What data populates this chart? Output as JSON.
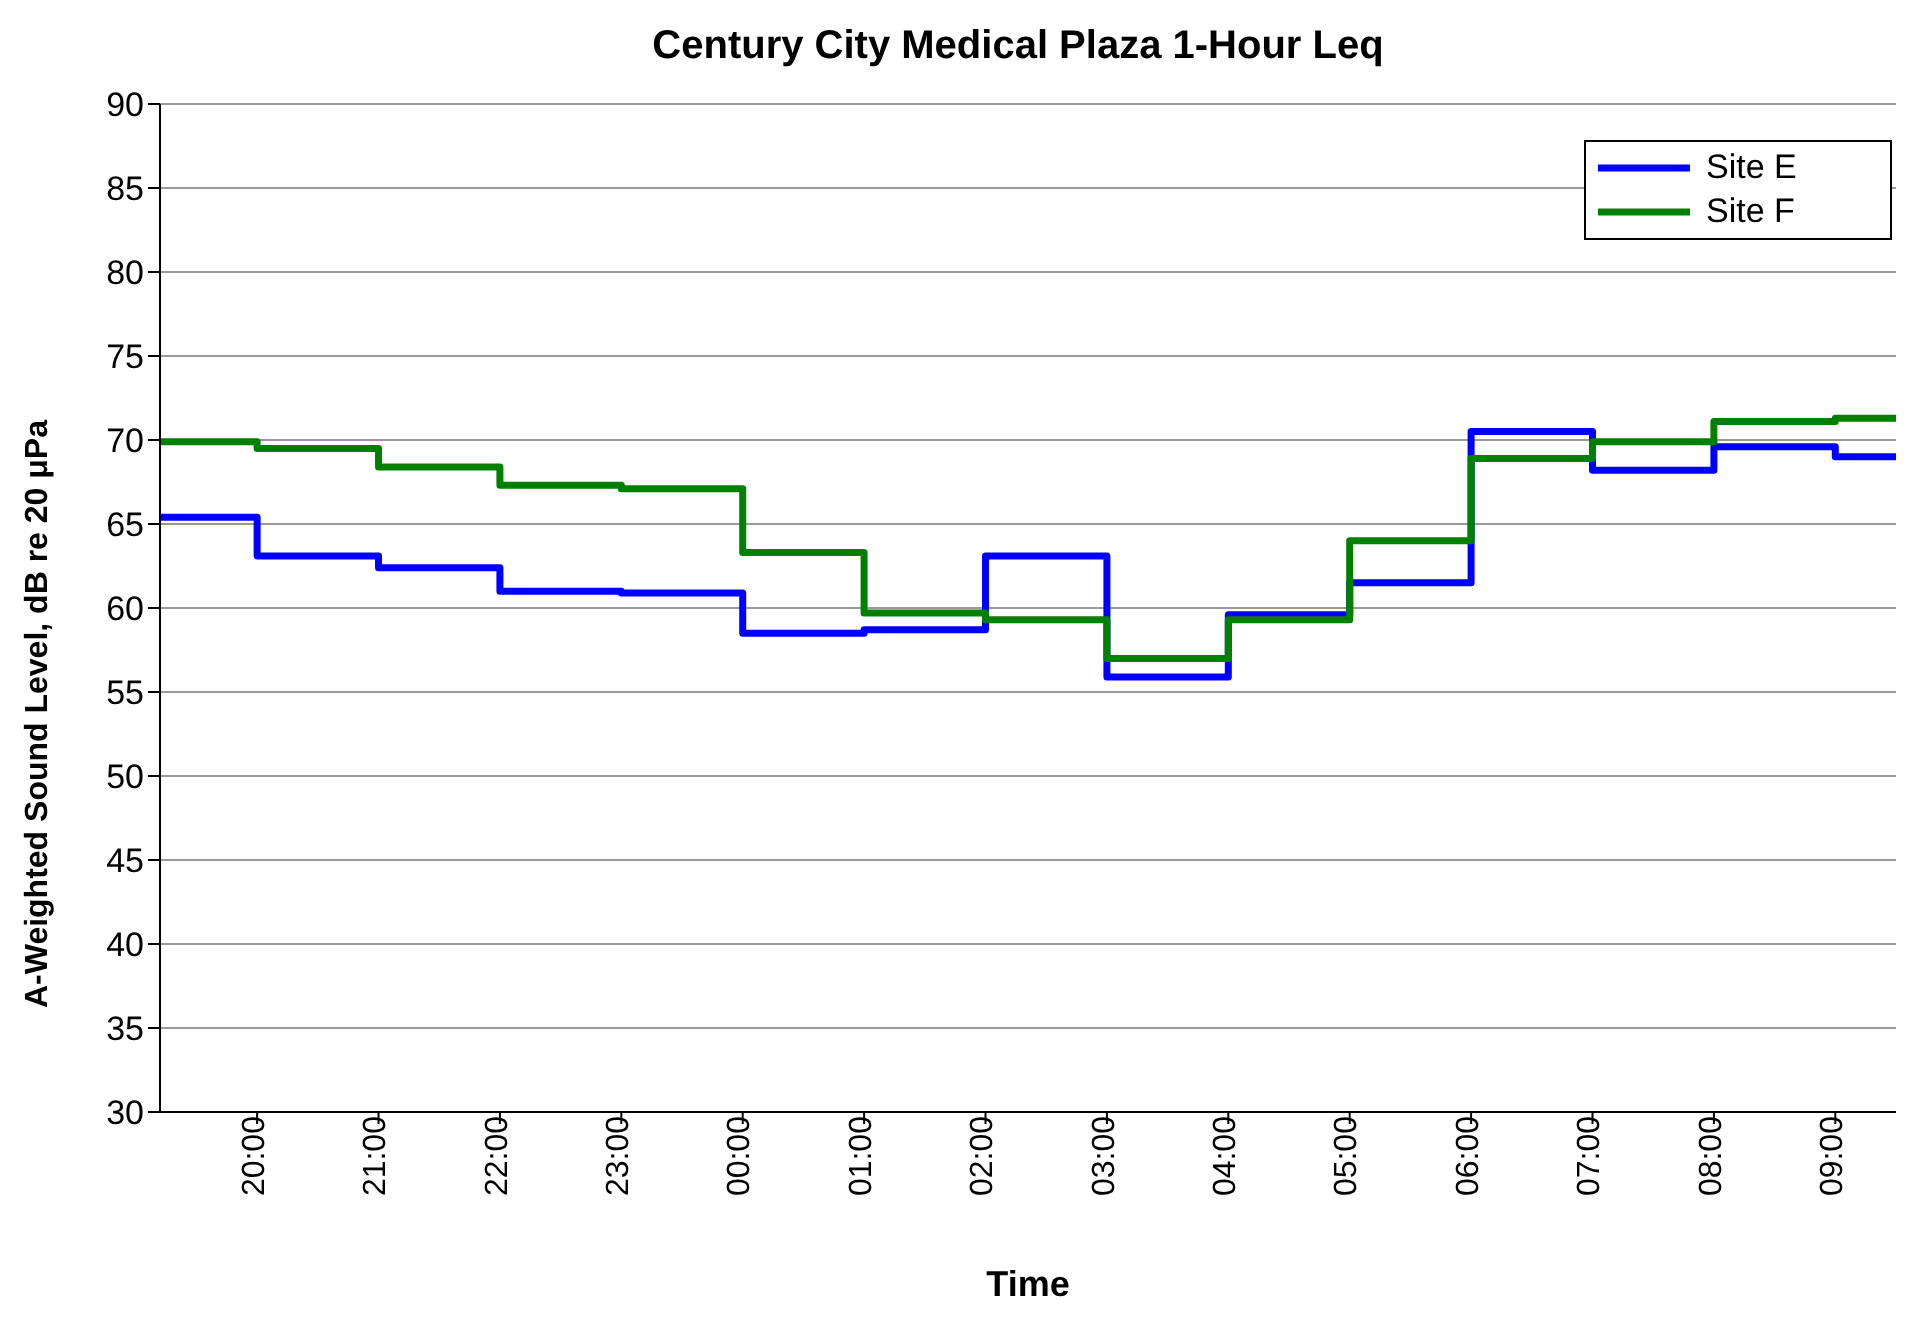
{
  "chart_data": {
    "type": "step",
    "title": "Century City Medical Plaza 1-Hour Leq",
    "xlabel": "Time",
    "ylabel": "A-Weighted Sound Level, dB re 20 μPa",
    "x": [
      "--01-01T19:12",
      "--01-01T20:00",
      "--01-01T21:00",
      "--01-01T22:00",
      "--01-01T23:00",
      "--01-02T00:00",
      "--01-02T01:00",
      "--01-02T02:00",
      "--01-02T03:00",
      "--01-02T04:00",
      "--01-02T05:00",
      "--01-02T06:00",
      "--01-02T07:00",
      "--01-02T08:00",
      "--01-02T09:00",
      "--01-02T09:30"
    ],
    "series": [
      {
        "name": "Site E",
        "color": "#0000ff",
        "values": [
          65.4,
          63.1,
          62.4,
          61.0,
          60.9,
          58.5,
          58.7,
          63.1,
          55.9,
          59.6,
          61.5,
          70.5,
          68.2,
          69.6,
          69.0,
          69.0
        ]
      },
      {
        "name": "Site F",
        "color": "#008000",
        "values": [
          69.9,
          69.5,
          68.4,
          67.3,
          67.1,
          63.3,
          59.7,
          59.3,
          57.0,
          59.3,
          64.0,
          68.9,
          69.9,
          71.1,
          71.3,
          71.3
        ]
      }
    ],
    "xlim": [
      "--01-01T19:12",
      "--01-02T09:30"
    ],
    "xticks": [
      {
        "value": "--01-01T20:00",
        "label": "20:00"
      },
      {
        "value": "--01-01T21:00",
        "label": "21:00"
      },
      {
        "value": "--01-01T22:00",
        "label": "22:00"
      },
      {
        "value": "--01-01T23:00",
        "label": "23:00"
      },
      {
        "value": "--01-02T00:00",
        "label": "00:00"
      },
      {
        "value": "--01-02T01:00",
        "label": "01:00"
      },
      {
        "value": "--01-02T02:00",
        "label": "02:00"
      },
      {
        "value": "--01-02T03:00",
        "label": "03:00"
      },
      {
        "value": "--01-02T04:00",
        "label": "04:00"
      },
      {
        "value": "--01-02T05:00",
        "label": "05:00"
      },
      {
        "value": "--01-02T06:00",
        "label": "06:00"
      },
      {
        "value": "--01-02T07:00",
        "label": "07:00"
      },
      {
        "value": "--01-02T08:00",
        "label": "08:00"
      },
      {
        "value": "--01-02T09:00",
        "label": "09:00"
      }
    ],
    "ylim": [
      30,
      90
    ],
    "yticks": [
      30,
      35,
      40,
      45,
      50,
      55,
      60,
      65,
      70,
      75,
      80,
      85,
      90
    ],
    "grid": "y",
    "legend": "top right",
    "line_style": "solid",
    "marker": "none"
  }
}
